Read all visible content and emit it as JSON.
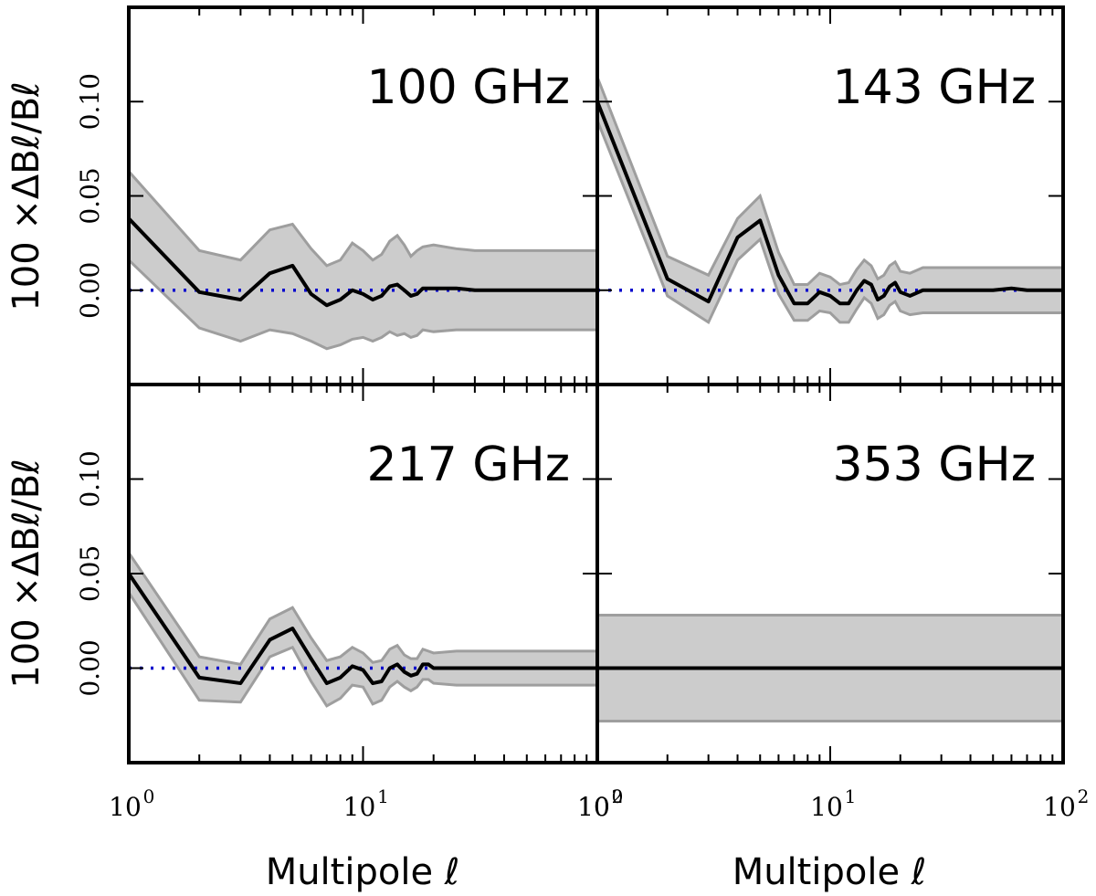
{
  "chart_data": {
    "type": "line",
    "figure": {
      "xlabel": "Multipole ℓ",
      "ylabel": "100 ×ΔBℓ/Bℓ",
      "x_scale": "log",
      "xlim": [
        1,
        100
      ],
      "ylim": [
        -0.05,
        0.15
      ],
      "x_tick_labels": [
        {
          "base": "10",
          "exp": "0",
          "value": 1
        },
        {
          "base": "10",
          "exp": "1",
          "value": 10
        },
        {
          "base": "10",
          "exp": "2",
          "value": 100
        }
      ],
      "y_tick_labels": [
        {
          "text": "0.00",
          "value": 0.0
        },
        {
          "text": "0.05",
          "value": 0.05
        },
        {
          "text": "0.10",
          "value": 0.1
        }
      ],
      "reference_line": {
        "y": 0.0,
        "style": "dotted",
        "color": "#0000cc"
      },
      "line_color": "#000000",
      "band_fill": "#cccccc",
      "band_edge": "#9e9e9e"
    },
    "panels": [
      {
        "label": "100 GHz",
        "x": [
          1,
          2,
          3,
          4,
          5,
          6,
          7,
          8,
          9,
          10,
          11,
          12,
          13,
          14,
          15,
          16,
          17,
          18,
          20,
          25,
          30,
          40,
          50,
          70,
          100
        ],
        "y": [
          0.038,
          -0.001,
          -0.005,
          0.009,
          0.013,
          -0.002,
          -0.008,
          -0.005,
          0.0,
          -0.002,
          -0.005,
          -0.003,
          0.002,
          0.003,
          0.0,
          -0.003,
          -0.002,
          0.001,
          0.001,
          0.001,
          0.0,
          0.0,
          0.0,
          0.0,
          0.0
        ],
        "lower": [
          0.016,
          -0.02,
          -0.027,
          -0.021,
          -0.023,
          -0.027,
          -0.031,
          -0.029,
          -0.026,
          -0.025,
          -0.027,
          -0.025,
          -0.022,
          -0.024,
          -0.023,
          -0.025,
          -0.024,
          -0.021,
          -0.022,
          -0.021,
          -0.021,
          -0.021,
          -0.021,
          -0.021,
          -0.021
        ],
        "upper": [
          0.063,
          0.021,
          0.016,
          0.032,
          0.035,
          0.022,
          0.013,
          0.016,
          0.025,
          0.021,
          0.016,
          0.019,
          0.026,
          0.029,
          0.024,
          0.018,
          0.021,
          0.023,
          0.024,
          0.022,
          0.021,
          0.021,
          0.021,
          0.021,
          0.021
        ]
      },
      {
        "label": "143 GHz",
        "x": [
          1,
          2,
          3,
          4,
          5,
          6,
          7,
          8,
          9,
          10,
          11,
          12,
          13,
          14,
          15,
          16,
          17,
          18,
          19,
          20,
          22,
          25,
          30,
          40,
          50,
          60,
          70,
          100
        ],
        "y": [
          0.1,
          0.006,
          -0.006,
          0.028,
          0.037,
          0.008,
          -0.007,
          -0.007,
          -0.001,
          -0.003,
          -0.007,
          -0.007,
          0.0,
          0.005,
          0.003,
          -0.005,
          -0.003,
          0.002,
          0.004,
          -0.001,
          -0.003,
          0.0,
          0.0,
          0.0,
          0.0,
          0.001,
          0.0,
          0.0
        ],
        "lower": [
          0.09,
          -0.003,
          -0.017,
          0.016,
          0.027,
          -0.002,
          -0.016,
          -0.016,
          -0.011,
          -0.012,
          -0.017,
          -0.017,
          -0.01,
          -0.004,
          -0.007,
          -0.015,
          -0.013,
          -0.008,
          -0.006,
          -0.011,
          -0.013,
          -0.012,
          -0.012,
          -0.012,
          -0.012,
          -0.012,
          -0.012,
          -0.012
        ],
        "upper": [
          0.113,
          0.018,
          0.008,
          0.038,
          0.05,
          0.02,
          0.003,
          0.003,
          0.009,
          0.007,
          0.003,
          0.004,
          0.011,
          0.016,
          0.013,
          0.006,
          0.008,
          0.013,
          0.015,
          0.01,
          0.009,
          0.012,
          0.012,
          0.012,
          0.012,
          0.012,
          0.012,
          0.012
        ]
      },
      {
        "label": "217 GHz",
        "x": [
          1,
          2,
          3,
          4,
          5,
          6,
          7,
          8,
          9,
          10,
          11,
          12,
          13,
          14,
          15,
          16,
          17,
          18,
          19,
          20,
          25,
          30,
          40,
          50,
          70,
          100
        ],
        "y": [
          0.05,
          -0.005,
          -0.008,
          0.015,
          0.021,
          0.005,
          -0.008,
          -0.005,
          0.001,
          -0.001,
          -0.008,
          -0.007,
          0.0,
          0.002,
          -0.002,
          -0.004,
          -0.003,
          0.002,
          0.002,
          0.0,
          0.0,
          0.0,
          0.0,
          0.0,
          0.0,
          0.0
        ],
        "lower": [
          0.04,
          -0.017,
          -0.018,
          0.006,
          0.011,
          -0.007,
          -0.02,
          -0.016,
          -0.009,
          -0.01,
          -0.019,
          -0.017,
          -0.01,
          -0.007,
          -0.01,
          -0.012,
          -0.01,
          -0.006,
          -0.006,
          -0.008,
          -0.009,
          -0.009,
          -0.009,
          -0.009,
          -0.009,
          -0.009
        ],
        "upper": [
          0.061,
          0.006,
          0.002,
          0.026,
          0.032,
          0.016,
          0.004,
          0.006,
          0.011,
          0.008,
          0.003,
          0.004,
          0.01,
          0.012,
          0.007,
          0.005,
          0.005,
          0.01,
          0.009,
          0.008,
          0.009,
          0.009,
          0.009,
          0.009,
          0.009,
          0.009
        ]
      },
      {
        "label": "353 GHz",
        "x": [
          1,
          100
        ],
        "y": [
          0.0,
          0.0
        ],
        "lower": [
          -0.028,
          -0.028
        ],
        "upper": [
          0.028,
          0.028
        ]
      }
    ]
  }
}
